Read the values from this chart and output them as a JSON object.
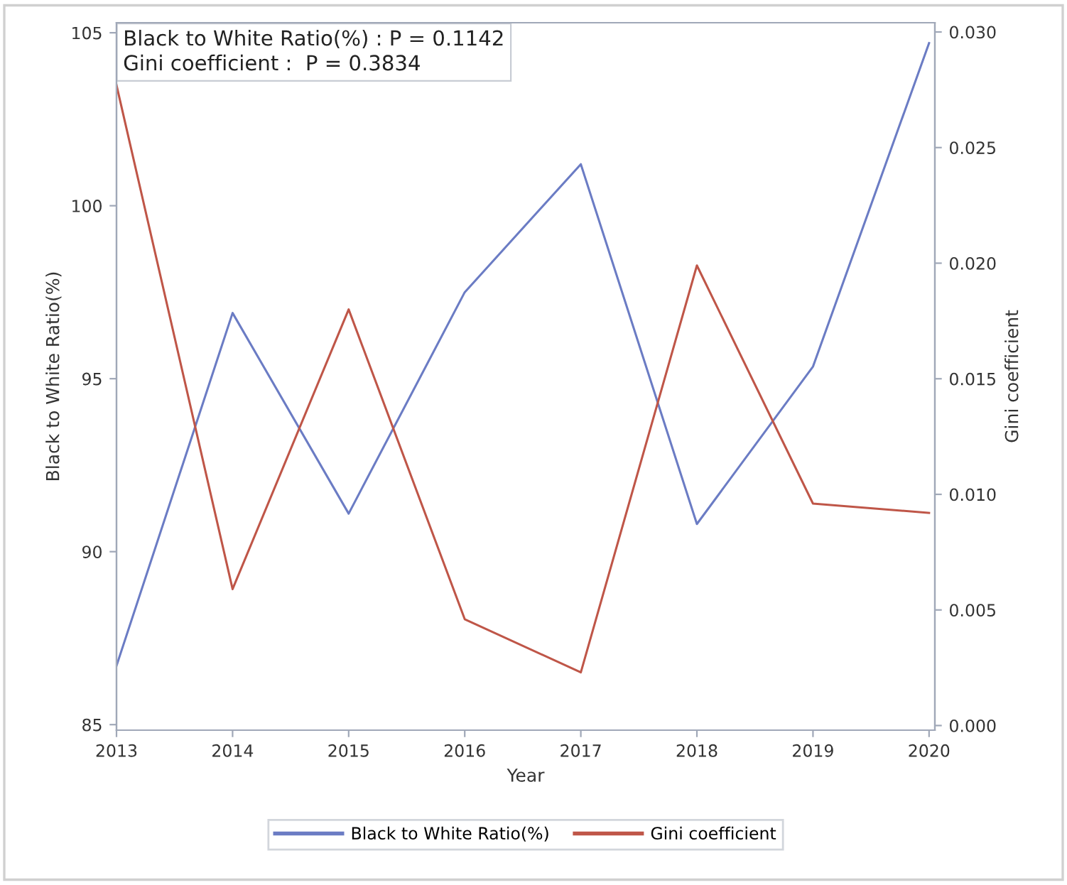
{
  "chart_data": {
    "type": "line",
    "xlabel": "Year",
    "ylabel": "Black to White Ratio(%)",
    "y2label": "Gini coefficient",
    "x": [
      2013,
      2014,
      2015,
      2016,
      2017,
      2018,
      2019,
      2020
    ],
    "series": [
      {
        "name": "Black to White Ratio(%)",
        "color": "#6b7cc4",
        "values": [
          86.7,
          96.9,
          91.1,
          97.5,
          101.2,
          90.8,
          95.35,
          104.7
        ]
      },
      {
        "name": "Gini coefficient",
        "color": "#bf5648",
        "axis": "y2",
        "values": [
          0.0277,
          0.0059,
          0.018,
          0.0046,
          0.0023,
          0.0199,
          0.0096,
          0.0092
        ]
      }
    ],
    "xlim": [
      2013,
      2020.05
    ],
    "xticks": [
      2013,
      2014,
      2015,
      2016,
      2017,
      2018,
      2019,
      2020
    ],
    "ylim": [
      84.84,
      105.29
    ],
    "yticks": [
      85,
      90,
      95,
      100,
      105
    ],
    "y2lim": [
      -0.0002,
      0.0304
    ],
    "y2ticks": [
      {
        "value": 0,
        "label": "0.000"
      },
      {
        "value": 0.005,
        "label": "0.005"
      },
      {
        "value": 0.01,
        "label": "0.010"
      },
      {
        "value": 0.015,
        "label": "0.015"
      },
      {
        "value": 0.02,
        "label": "0.020"
      },
      {
        "value": 0.025,
        "label": "0.025"
      },
      {
        "value": 0.03,
        "label": "0.030"
      }
    ],
    "annotations": [
      "Black to White Ratio(%) : P = 0.1142\nGini coefficient :  P = 0.3834"
    ],
    "legend": "bottom",
    "grid": false,
    "line_style": "solid",
    "marker": "none"
  }
}
